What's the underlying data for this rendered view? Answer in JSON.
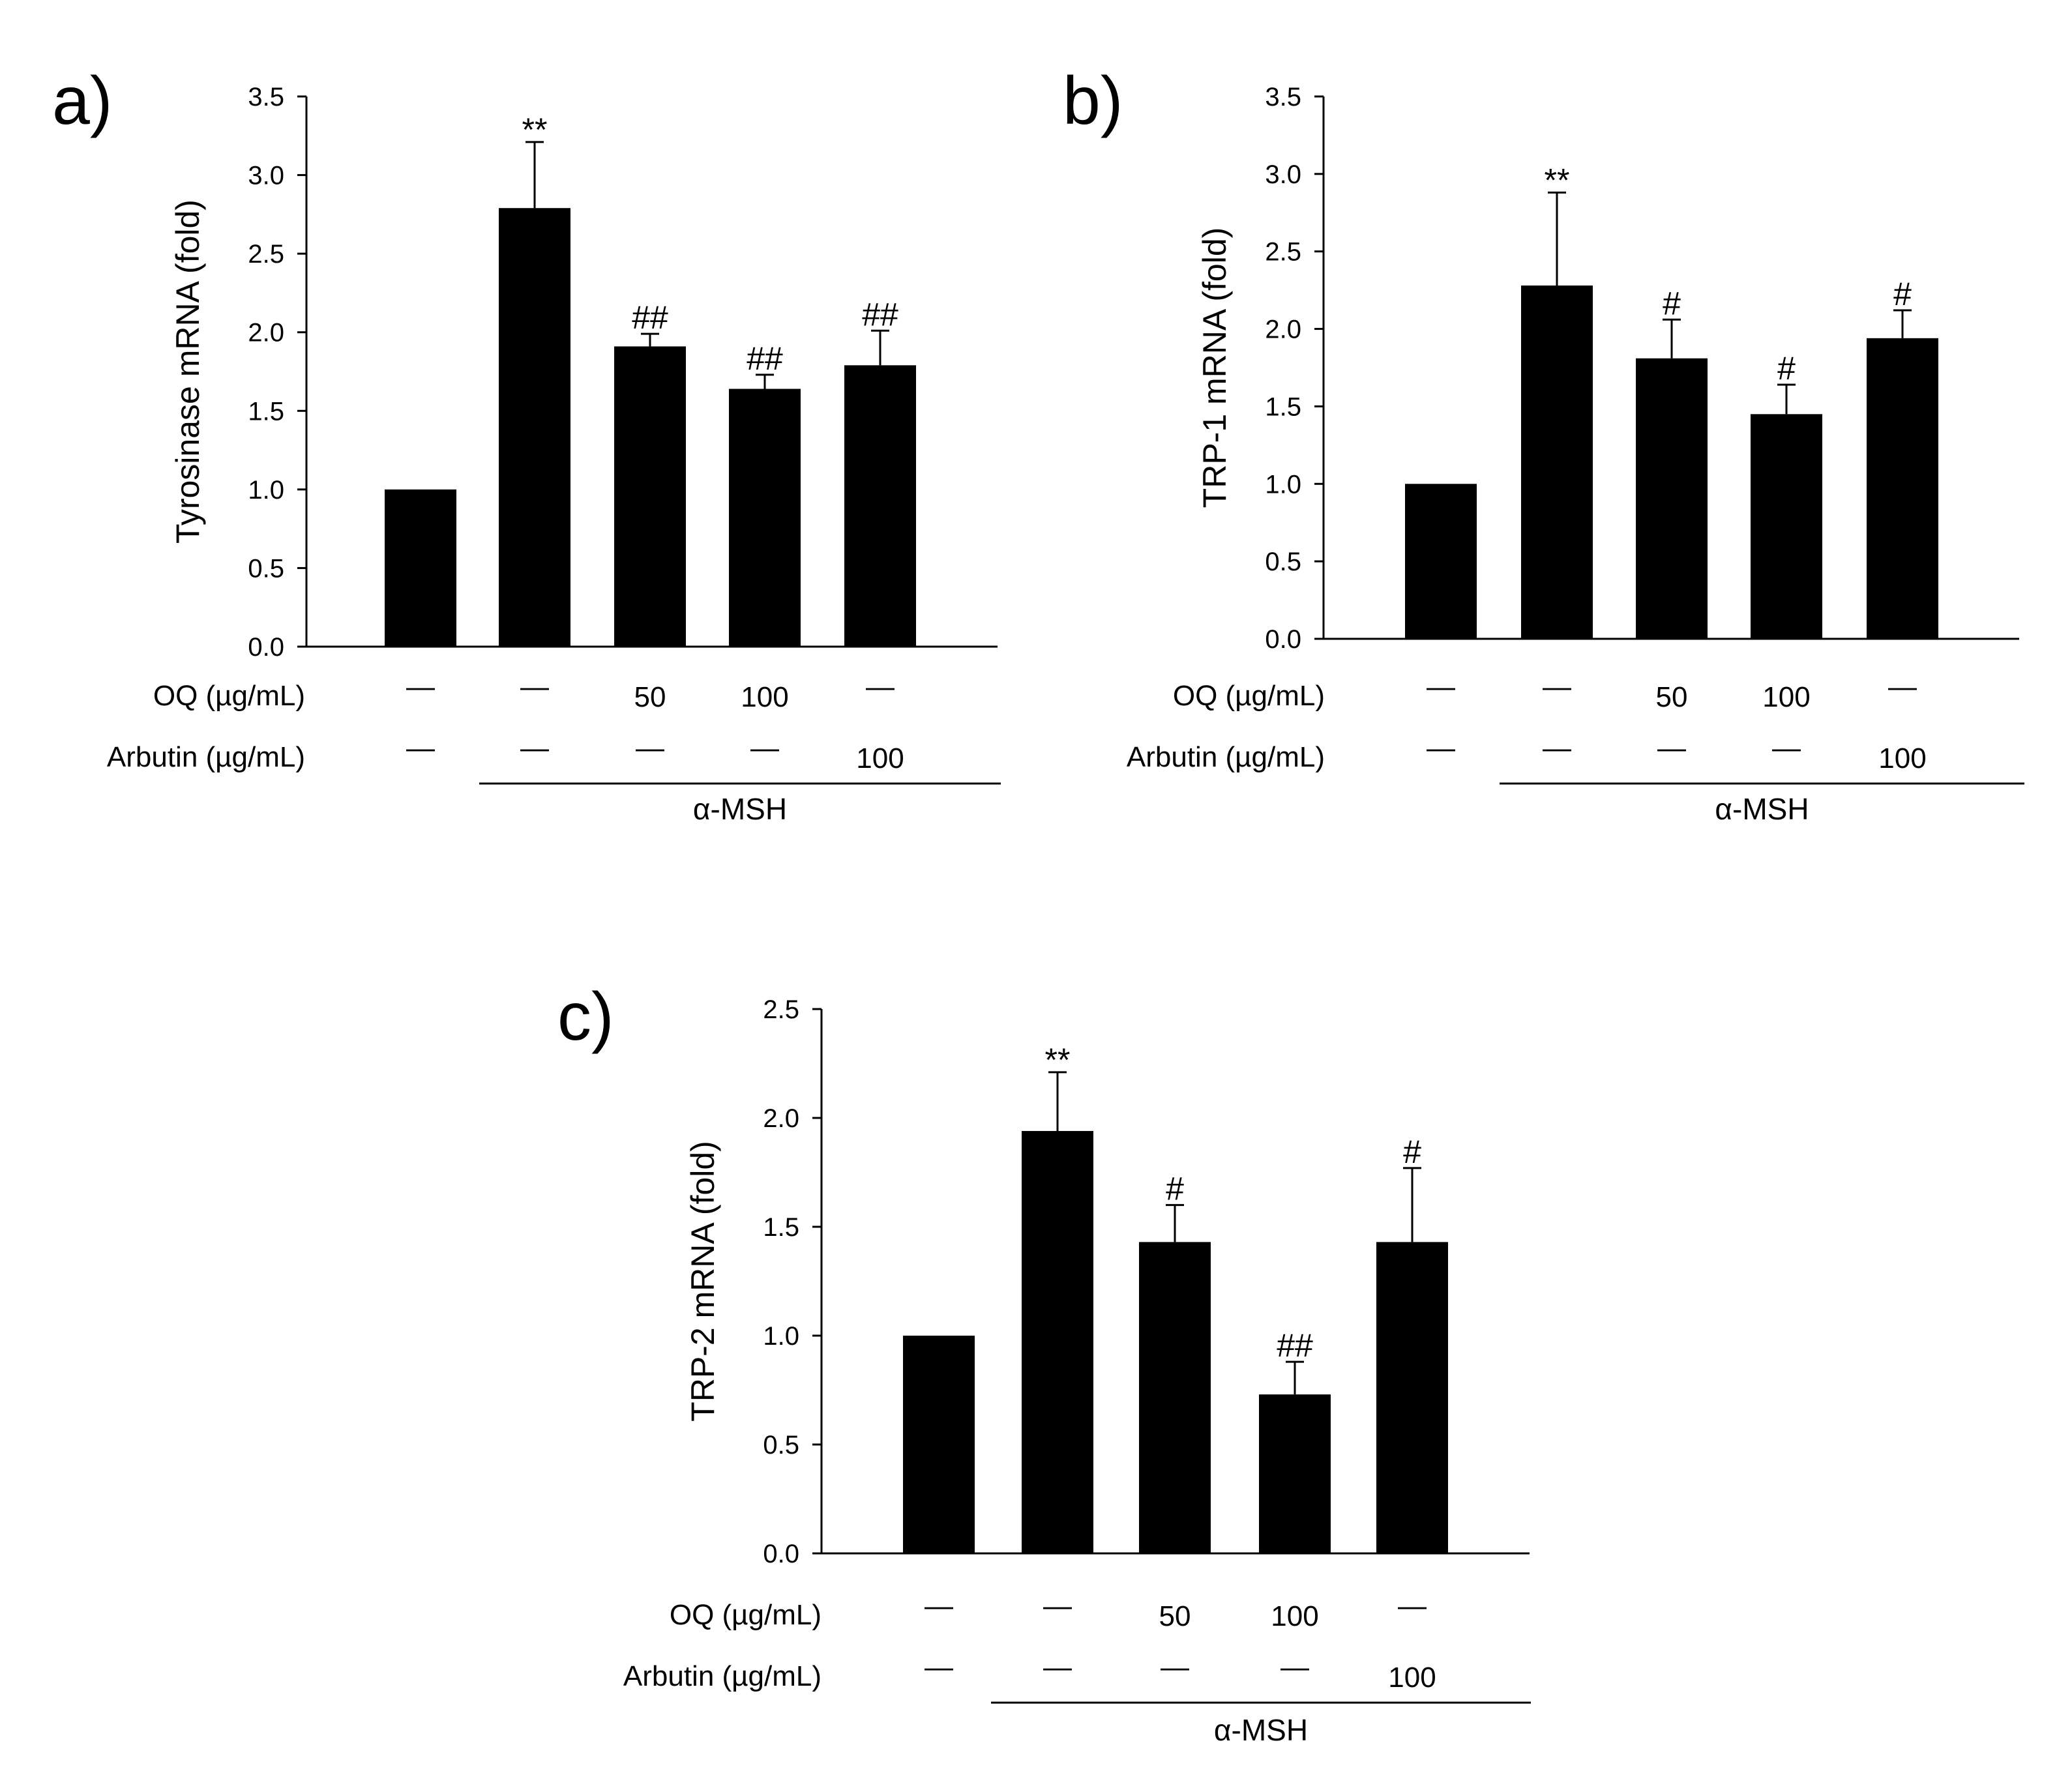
{
  "chart_data": [
    {
      "type": "bar",
      "panel": "a)",
      "ylabel": "Tyrosinase mRNA (fold)",
      "ylim": [
        0,
        3.5
      ],
      "yticks": [
        "0.0",
        "0.5",
        "1.0",
        "1.5",
        "2.0",
        "2.5",
        "3.0",
        "3.5"
      ],
      "values": [
        1.0,
        2.79,
        1.91,
        1.64,
        1.79
      ],
      "errors": [
        0.0,
        0.42,
        0.08,
        0.09,
        0.22
      ],
      "significance": [
        "",
        "**",
        "##",
        "##",
        "##"
      ],
      "rows": [
        {
          "label": "OQ (µg/mL)",
          "cells": [
            "—",
            "—",
            "50",
            "100",
            "—"
          ]
        },
        {
          "label": "Arbutin (µg/mL)",
          "cells": [
            "—",
            "—",
            "—",
            "—",
            "100"
          ]
        }
      ],
      "group_label": "α-MSH"
    },
    {
      "type": "bar",
      "panel": "b)",
      "ylabel": "TRP-1 mRNA (fold)",
      "ylim": [
        0,
        3.5
      ],
      "yticks": [
        "0.0",
        "0.5",
        "1.0",
        "1.5",
        "2.0",
        "2.5",
        "3.0",
        "3.5"
      ],
      "values": [
        1.0,
        2.28,
        1.81,
        1.45,
        1.94
      ],
      "errors": [
        0.0,
        0.6,
        0.25,
        0.19,
        0.18
      ],
      "significance": [
        "",
        "**",
        "#",
        "#",
        "#"
      ],
      "rows": [
        {
          "label": "OQ (µg/mL)",
          "cells": [
            "—",
            "—",
            "50",
            "100",
            "—"
          ]
        },
        {
          "label": "Arbutin (µg/mL)",
          "cells": [
            "—",
            "—",
            "—",
            "—",
            "100"
          ]
        }
      ],
      "group_label": "α-MSH"
    },
    {
      "type": "bar",
      "panel": "c)",
      "ylabel": "TRP-2 mRNA (fold)",
      "ylim": [
        0,
        2.5
      ],
      "yticks": [
        "0.0",
        "0.5",
        "1.0",
        "1.5",
        "2.0",
        "2.5"
      ],
      "values": [
        1.0,
        1.94,
        1.43,
        0.73,
        1.43
      ],
      "errors": [
        0.0,
        0.27,
        0.17,
        0.15,
        0.34
      ],
      "significance": [
        "",
        "**",
        "#",
        "##",
        "#"
      ],
      "rows": [
        {
          "label": "OQ (µg/mL)",
          "cells": [
            "—",
            "—",
            "50",
            "100",
            "—"
          ]
        },
        {
          "label": "Arbutin (µg/mL)",
          "cells": [
            "—",
            "—",
            "—",
            "—",
            "100"
          ]
        }
      ],
      "group_label": "α-MSH"
    }
  ]
}
